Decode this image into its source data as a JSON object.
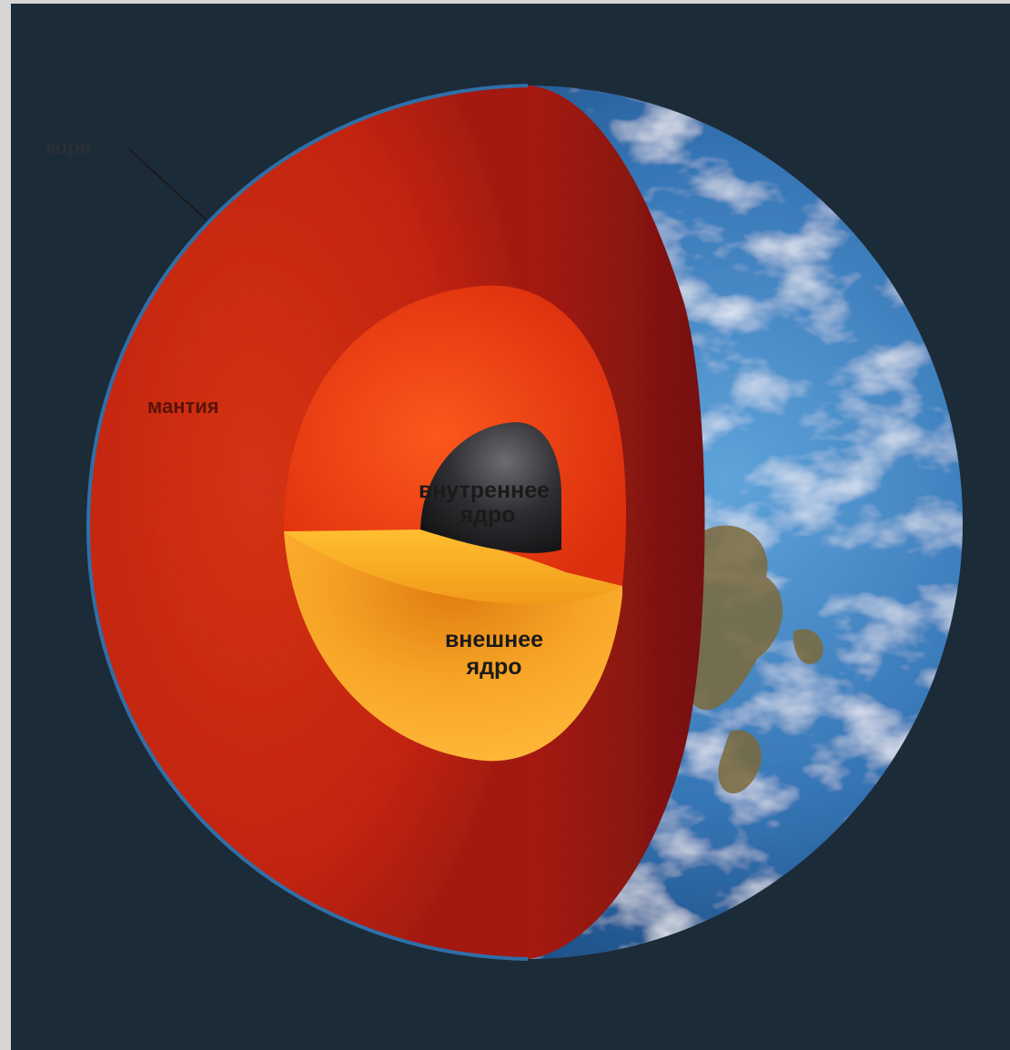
{
  "labels": {
    "crust": "кора",
    "mantle": "мантия",
    "inner_core_line1": "внутреннее",
    "inner_core_line2": "ядро",
    "outer_core_line1": "внешнее",
    "outer_core_line2": "ядро"
  },
  "colors": {
    "background": "#1c2b38",
    "frame": "#d6d6d6",
    "mantle": "#d8260c",
    "mantle_dark": "#8a1208",
    "outer_core": "#f2a020",
    "inner_core": "#2a2a2e",
    "ocean": "#3a7fc0",
    "land": "#7a6a3a"
  }
}
